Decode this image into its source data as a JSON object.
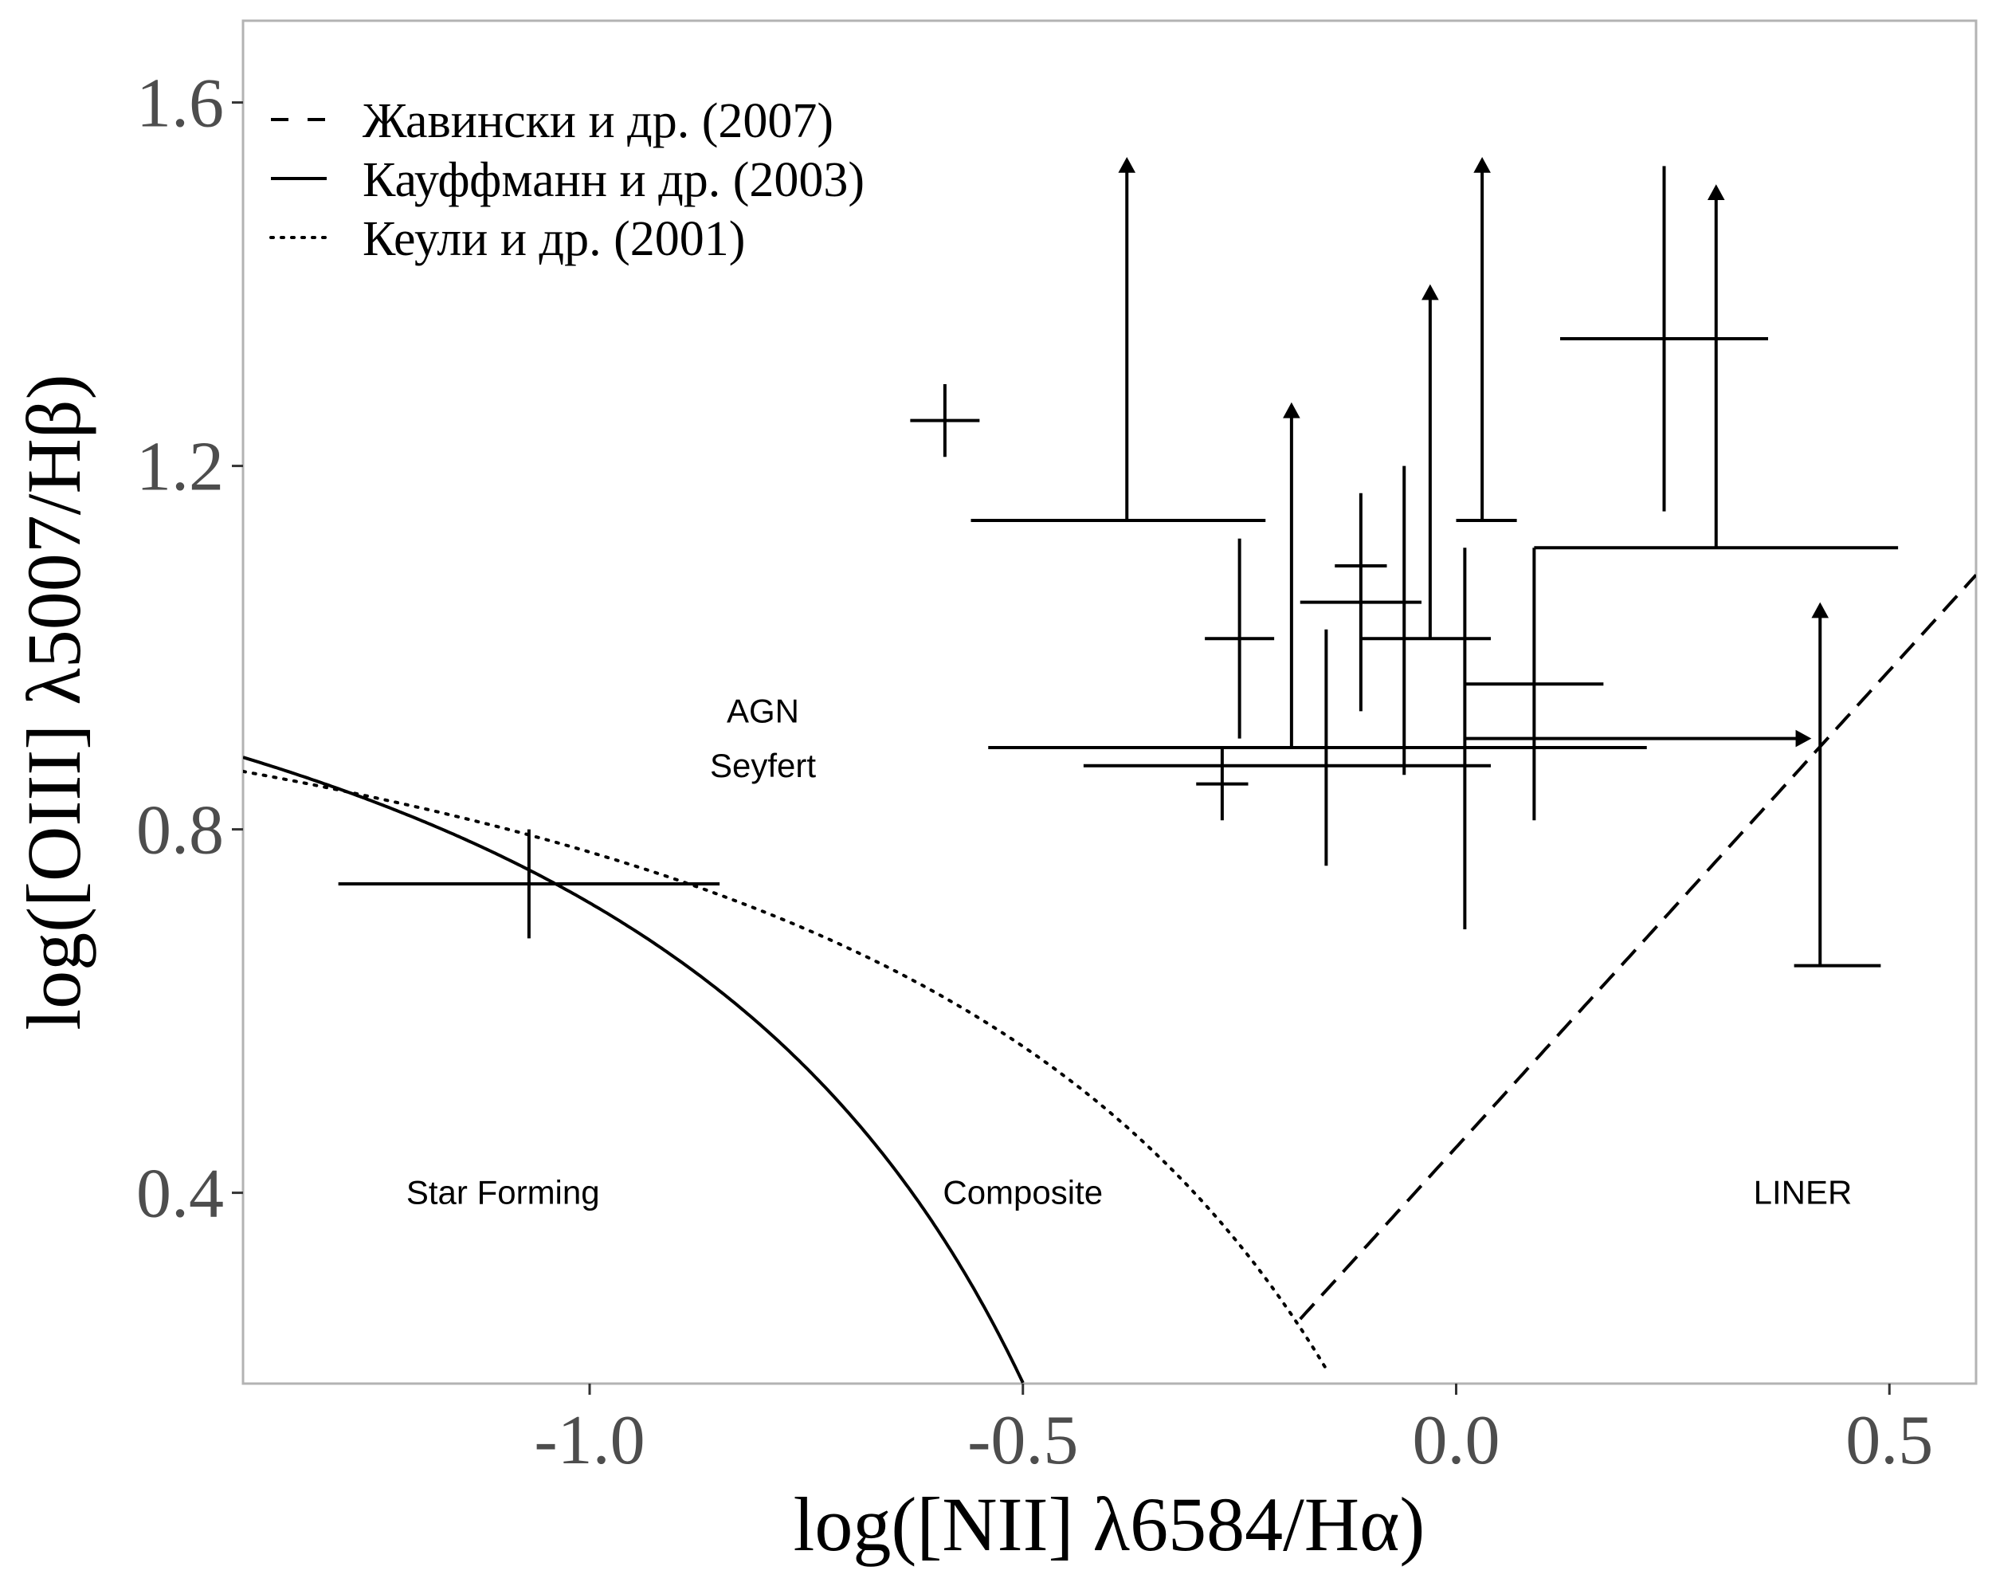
{
  "chart_data": {
    "type": "scatter",
    "xlabel": "log([NII] λ6584/Hα)",
    "ylabel": "log([OIII] λ5007/Hβ)",
    "xlim": [
      -1.4,
      0.6
    ],
    "ylim": [
      0.19,
      1.69
    ],
    "x_ticks": [
      -1.0,
      -0.5,
      0.0,
      0.5
    ],
    "x_tick_labels": [
      "-1.0",
      "-0.5",
      "0.0",
      "0.5"
    ],
    "y_ticks": [
      0.4,
      0.8,
      1.2,
      1.6
    ],
    "y_tick_labels": [
      "0.4",
      "0.8",
      "1.2",
      "1.6"
    ],
    "grid": false,
    "legend_position": "top-left",
    "legend": [
      {
        "label": "Жавински и др. (2007)",
        "style": "dashed"
      },
      {
        "label": "Кауффманн и др. (2003)",
        "style": "solid"
      },
      {
        "label": "Кеули и др. (2001)",
        "style": "dotted"
      }
    ],
    "curves": [
      {
        "name": "Кауффманн и др. (2003)",
        "style": "solid",
        "formula": "0.61/(x-0.05)+1.3",
        "x_range": [
          -1.4,
          -0.5
        ]
      },
      {
        "name": "Кеули и др. (2001)",
        "style": "dotted",
        "formula": "0.61/(x-0.47)+1.19",
        "x_range": [
          -1.4,
          -0.15
        ]
      },
      {
        "name": "Жавински и др. (2007)",
        "style": "dashed",
        "formula": "1.05*x+0.45",
        "x_range": [
          -0.18,
          0.6
        ]
      }
    ],
    "region_labels": [
      {
        "text": "AGN",
        "x": -0.8,
        "y": 0.93
      },
      {
        "text": "Seyfert",
        "x": -0.8,
        "y": 0.87
      },
      {
        "text": "Star Forming",
        "x": -1.1,
        "y": 0.4
      },
      {
        "text": "Composite",
        "x": -0.5,
        "y": 0.4
      },
      {
        "text": "LINER",
        "x": 0.4,
        "y": 0.4
      }
    ],
    "points": [
      {
        "x": -1.07,
        "y": 0.74,
        "xmin": -1.29,
        "xmax": -0.85,
        "ymin": 0.68,
        "ymax": 0.8
      },
      {
        "x": -0.59,
        "y": 1.25,
        "xmin": -0.63,
        "xmax": -0.55,
        "ymin": 1.21,
        "ymax": 1.29
      },
      {
        "x": -0.38,
        "y": 1.14,
        "xmin": -0.56,
        "xmax": -0.22,
        "ymin": null,
        "ymax": null,
        "lower_limit_y": true,
        "arrow_to": 1.54
      },
      {
        "x": -0.25,
        "y": 1.01,
        "xmin": -0.29,
        "xmax": -0.21,
        "ymin": 0.9,
        "ymax": 1.12
      },
      {
        "x": -0.27,
        "y": 0.85,
        "xmin": -0.3,
        "xmax": -0.24,
        "ymin": 0.81,
        "ymax": 0.89
      },
      {
        "x": -0.19,
        "y": 0.89,
        "xmin": -0.54,
        "xmax": 0.22,
        "ymin": null,
        "ymax": null,
        "lower_limit_y": true,
        "arrow_to": 1.27
      },
      {
        "x": -0.15,
        "y": 0.87,
        "xmin": -0.43,
        "xmax": 0.04,
        "ymin": 0.76,
        "ymax": 1.02
      },
      {
        "x": -0.11,
        "y": 1.09,
        "xmin": -0.14,
        "xmax": -0.08,
        "ymin": 0.93,
        "ymax": 1.17
      },
      {
        "x": -0.06,
        "y": 1.05,
        "xmin": -0.18,
        "xmax": -0.04,
        "ymin": 0.86,
        "ymax": 1.2
      },
      {
        "x": -0.03,
        "y": 1.01,
        "xmin": -0.11,
        "xmax": 0.04,
        "ymin": null,
        "ymax": null,
        "lower_limit_y": true,
        "arrow_to": 1.4
      },
      {
        "x": 0.01,
        "y": 0.9,
        "xmin": null,
        "xmax": null,
        "ymin": 0.69,
        "ymax": 1.11,
        "lower_limit_x": true,
        "arrow_to_x": 0.41
      },
      {
        "x": 0.03,
        "y": 1.14,
        "xmin": -0.0,
        "xmax": 0.07,
        "ymin": null,
        "ymax": null,
        "lower_limit_y": true,
        "arrow_to": 1.54
      },
      {
        "x": 0.09,
        "y": 0.96,
        "xmin": 0.01,
        "xmax": 0.17,
        "ymin": 0.81,
        "ymax": 1.11
      },
      {
        "x": 0.24,
        "y": 1.34,
        "xmin": 0.12,
        "xmax": 0.36,
        "ymin": 1.15,
        "ymax": 1.53
      },
      {
        "x": 0.3,
        "y": 1.11,
        "xmin": 0.09,
        "xmax": 0.51,
        "ymin": null,
        "ymax": null,
        "lower_limit_y": true,
        "arrow_to": 1.51
      },
      {
        "x": 0.42,
        "y": 0.65,
        "xmin": 0.39,
        "xmax": 0.49,
        "ymin": null,
        "ymax": null,
        "lower_limit_y": true,
        "arrow_to": 1.05
      }
    ]
  }
}
